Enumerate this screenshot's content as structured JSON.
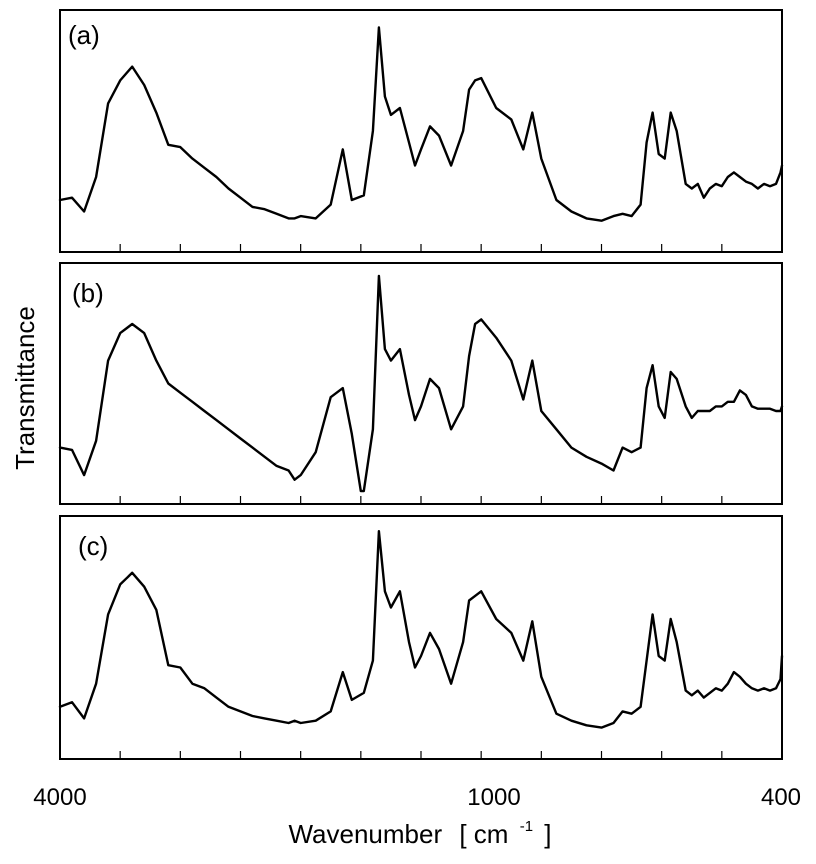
{
  "chart_data": {
    "type": "line",
    "xlabel": "Wavenumber",
    "xlabel_unit_open": "[ cm",
    "xlabel_unit_exp": "-1",
    "xlabel_unit_close": "]",
    "ylabel": "Transmittance",
    "xlim": [
      4000,
      400
    ],
    "x_axis_note": "wavenumber axis has a scale change at 2000 cm-1 (4000–2000 cm-1 compressed into the left third)",
    "x_ticks": [
      {
        "value": 4000,
        "label": "4000"
      },
      {
        "value": 1000,
        "label": "1000"
      },
      {
        "value": 400,
        "label": "400"
      }
    ],
    "y_ticks_shown": false,
    "grid": false,
    "panels": [
      {
        "label": "(a)",
        "series": [
          {
            "name": "",
            "points": [
              [
                4000,
                0.2
              ],
              [
                3900,
                0.21
              ],
              [
                3800,
                0.15
              ],
              [
                3700,
                0.3
              ],
              [
                3600,
                0.62
              ],
              [
                3500,
                0.72
              ],
              [
                3400,
                0.78
              ],
              [
                3300,
                0.7
              ],
              [
                3200,
                0.58
              ],
              [
                3100,
                0.44
              ],
              [
                3000,
                0.43
              ],
              [
                2900,
                0.38
              ],
              [
                2800,
                0.34
              ],
              [
                2700,
                0.3
              ],
              [
                2600,
                0.25
              ],
              [
                2500,
                0.21
              ],
              [
                2400,
                0.17
              ],
              [
                2300,
                0.16
              ],
              [
                2200,
                0.14
              ],
              [
                2100,
                0.12
              ],
              [
                2050,
                0.12
              ],
              [
                2000,
                0.13
              ],
              [
                1950,
                0.12
              ],
              [
                1900,
                0.18
              ],
              [
                1860,
                0.42
              ],
              [
                1830,
                0.2
              ],
              [
                1790,
                0.22
              ],
              [
                1760,
                0.5
              ],
              [
                1740,
                0.95
              ],
              [
                1720,
                0.65
              ],
              [
                1700,
                0.57
              ],
              [
                1670,
                0.6
              ],
              [
                1640,
                0.45
              ],
              [
                1620,
                0.35
              ],
              [
                1600,
                0.42
              ],
              [
                1570,
                0.52
              ],
              [
                1540,
                0.48
              ],
              [
                1500,
                0.35
              ],
              [
                1460,
                0.5
              ],
              [
                1440,
                0.68
              ],
              [
                1420,
                0.72
              ],
              [
                1400,
                0.73
              ],
              [
                1350,
                0.6
              ],
              [
                1300,
                0.55
              ],
              [
                1260,
                0.42
              ],
              [
                1230,
                0.58
              ],
              [
                1200,
                0.38
              ],
              [
                1150,
                0.2
              ],
              [
                1100,
                0.15
              ],
              [
                1050,
                0.12
              ],
              [
                1000,
                0.11
              ],
              [
                960,
                0.13
              ],
              [
                930,
                0.14
              ],
              [
                900,
                0.13
              ],
              [
                870,
                0.18
              ],
              [
                850,
                0.45
              ],
              [
                830,
                0.58
              ],
              [
                810,
                0.4
              ],
              [
                790,
                0.38
              ],
              [
                770,
                0.58
              ],
              [
                750,
                0.5
              ],
              [
                720,
                0.27
              ],
              [
                700,
                0.25
              ],
              [
                680,
                0.27
              ],
              [
                660,
                0.21
              ],
              [
                640,
                0.25
              ],
              [
                620,
                0.27
              ],
              [
                600,
                0.26
              ],
              [
                580,
                0.3
              ],
              [
                560,
                0.32
              ],
              [
                540,
                0.3
              ],
              [
                520,
                0.28
              ],
              [
                500,
                0.27
              ],
              [
                480,
                0.25
              ],
              [
                460,
                0.27
              ],
              [
                440,
                0.26
              ],
              [
                420,
                0.27
              ],
              [
                405,
                0.32
              ],
              [
                400,
                0.35
              ]
            ]
          }
        ]
      },
      {
        "label": "(b)",
        "series": [
          {
            "name": "",
            "points": [
              [
                4000,
                0.22
              ],
              [
                3900,
                0.21
              ],
              [
                3800,
                0.1
              ],
              [
                3700,
                0.25
              ],
              [
                3600,
                0.6
              ],
              [
                3500,
                0.72
              ],
              [
                3400,
                0.76
              ],
              [
                3300,
                0.72
              ],
              [
                3200,
                0.6
              ],
              [
                3100,
                0.5
              ],
              [
                3000,
                0.46
              ],
              [
                2900,
                0.42
              ],
              [
                2800,
                0.38
              ],
              [
                2700,
                0.34
              ],
              [
                2600,
                0.3
              ],
              [
                2500,
                0.26
              ],
              [
                2400,
                0.22
              ],
              [
                2300,
                0.18
              ],
              [
                2200,
                0.14
              ],
              [
                2100,
                0.12
              ],
              [
                2050,
                0.08
              ],
              [
                2000,
                0.1
              ],
              [
                1950,
                0.2
              ],
              [
                1900,
                0.44
              ],
              [
                1860,
                0.48
              ],
              [
                1830,
                0.28
              ],
              [
                1800,
                0.03
              ],
              [
                1790,
                0.03
              ],
              [
                1760,
                0.3
              ],
              [
                1740,
                0.97
              ],
              [
                1720,
                0.65
              ],
              [
                1700,
                0.6
              ],
              [
                1670,
                0.65
              ],
              [
                1640,
                0.45
              ],
              [
                1620,
                0.34
              ],
              [
                1600,
                0.4
              ],
              [
                1570,
                0.52
              ],
              [
                1540,
                0.48
              ],
              [
                1500,
                0.3
              ],
              [
                1460,
                0.4
              ],
              [
                1440,
                0.62
              ],
              [
                1420,
                0.76
              ],
              [
                1400,
                0.78
              ],
              [
                1350,
                0.7
              ],
              [
                1300,
                0.6
              ],
              [
                1260,
                0.43
              ],
              [
                1230,
                0.6
              ],
              [
                1200,
                0.38
              ],
              [
                1150,
                0.3
              ],
              [
                1100,
                0.22
              ],
              [
                1050,
                0.18
              ],
              [
                1000,
                0.15
              ],
              [
                960,
                0.12
              ],
              [
                930,
                0.22
              ],
              [
                900,
                0.2
              ],
              [
                870,
                0.22
              ],
              [
                850,
                0.48
              ],
              [
                830,
                0.58
              ],
              [
                810,
                0.4
              ],
              [
                790,
                0.35
              ],
              [
                770,
                0.55
              ],
              [
                750,
                0.52
              ],
              [
                720,
                0.4
              ],
              [
                700,
                0.35
              ],
              [
                680,
                0.38
              ],
              [
                660,
                0.38
              ],
              [
                640,
                0.38
              ],
              [
                620,
                0.4
              ],
              [
                600,
                0.4
              ],
              [
                580,
                0.42
              ],
              [
                560,
                0.42
              ],
              [
                540,
                0.47
              ],
              [
                520,
                0.45
              ],
              [
                500,
                0.4
              ],
              [
                480,
                0.39
              ],
              [
                460,
                0.39
              ],
              [
                440,
                0.39
              ],
              [
                420,
                0.38
              ],
              [
                405,
                0.38
              ],
              [
                400,
                0.4
              ]
            ]
          }
        ]
      },
      {
        "label": "(c)",
        "series": [
          {
            "name": "",
            "points": [
              [
                4000,
                0.2
              ],
              [
                3900,
                0.22
              ],
              [
                3800,
                0.15
              ],
              [
                3700,
                0.3
              ],
              [
                3600,
                0.6
              ],
              [
                3500,
                0.73
              ],
              [
                3400,
                0.78
              ],
              [
                3300,
                0.72
              ],
              [
                3200,
                0.62
              ],
              [
                3100,
                0.38
              ],
              [
                3000,
                0.37
              ],
              [
                2900,
                0.3
              ],
              [
                2800,
                0.28
              ],
              [
                2700,
                0.24
              ],
              [
                2600,
                0.2
              ],
              [
                2500,
                0.18
              ],
              [
                2400,
                0.16
              ],
              [
                2300,
                0.15
              ],
              [
                2200,
                0.14
              ],
              [
                2100,
                0.13
              ],
              [
                2050,
                0.14
              ],
              [
                2000,
                0.13
              ],
              [
                1950,
                0.14
              ],
              [
                1900,
                0.18
              ],
              [
                1860,
                0.35
              ],
              [
                1830,
                0.23
              ],
              [
                1790,
                0.26
              ],
              [
                1760,
                0.4
              ],
              [
                1740,
                0.96
              ],
              [
                1720,
                0.7
              ],
              [
                1700,
                0.63
              ],
              [
                1670,
                0.7
              ],
              [
                1640,
                0.48
              ],
              [
                1620,
                0.37
              ],
              [
                1600,
                0.42
              ],
              [
                1570,
                0.52
              ],
              [
                1540,
                0.45
              ],
              [
                1500,
                0.3
              ],
              [
                1460,
                0.48
              ],
              [
                1440,
                0.66
              ],
              [
                1420,
                0.68
              ],
              [
                1400,
                0.7
              ],
              [
                1350,
                0.58
              ],
              [
                1300,
                0.52
              ],
              [
                1260,
                0.4
              ],
              [
                1230,
                0.57
              ],
              [
                1200,
                0.33
              ],
              [
                1150,
                0.17
              ],
              [
                1100,
                0.14
              ],
              [
                1050,
                0.12
              ],
              [
                1000,
                0.11
              ],
              [
                960,
                0.13
              ],
              [
                930,
                0.18
              ],
              [
                900,
                0.17
              ],
              [
                870,
                0.2
              ],
              [
                850,
                0.4
              ],
              [
                830,
                0.6
              ],
              [
                810,
                0.42
              ],
              [
                790,
                0.4
              ],
              [
                770,
                0.58
              ],
              [
                750,
                0.48
              ],
              [
                720,
                0.27
              ],
              [
                700,
                0.25
              ],
              [
                680,
                0.27
              ],
              [
                660,
                0.24
              ],
              [
                640,
                0.26
              ],
              [
                620,
                0.28
              ],
              [
                600,
                0.27
              ],
              [
                580,
                0.3
              ],
              [
                560,
                0.35
              ],
              [
                540,
                0.33
              ],
              [
                520,
                0.3
              ],
              [
                500,
                0.28
              ],
              [
                480,
                0.27
              ],
              [
                460,
                0.28
              ],
              [
                440,
                0.27
              ],
              [
                420,
                0.28
              ],
              [
                405,
                0.32
              ],
              [
                400,
                0.42
              ]
            ]
          }
        ]
      }
    ]
  }
}
